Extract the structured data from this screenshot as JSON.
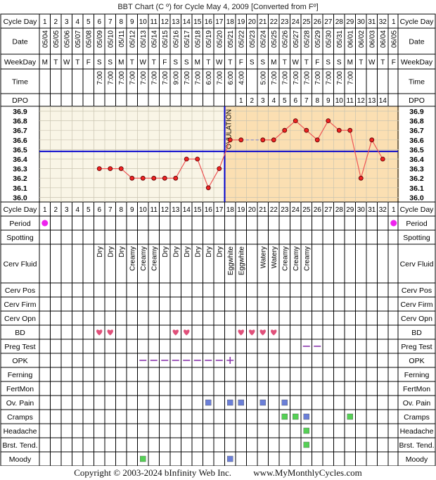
{
  "title": "BBT Chart (C º) for Cycle May 4, 2009  [Converted from Fº]",
  "footer": {
    "copyright": "Copyright © 2003-2024 bInfinity Web Inc.",
    "site": "www.MyMonthlyCycles.com"
  },
  "labels": {
    "cycle_day": "Cycle Day",
    "date": "Date",
    "weekday": "WeekDay",
    "time": "Time",
    "dpo": "DPO",
    "period": "Period",
    "spotting": "Spotting",
    "cerv_fluid": "Cerv Fluid",
    "cerv_pos": "Cerv Pos",
    "cerv_firm": "Cerv Firm",
    "cerv_opn": "Cerv Opn",
    "bd": "BD",
    "preg_test": "Preg Test",
    "opk": "OPK",
    "ferning": "Ferning",
    "fertmon": "FertMon",
    "ov_pain": "Ov. Pain",
    "cramps": "Cramps",
    "headache": "Headache",
    "brst_tend": "Brst. Tend.",
    "moody": "Moody"
  },
  "colors": {
    "grid": "#000000",
    "pre_bg": "#f9f5e6",
    "post_bg": "#fbdfb2",
    "coverline": "#0000cc",
    "ovulation": "#0000cc",
    "temp_line": "#ee5555",
    "temp_dot": "#ee2222",
    "period_dot": "#ee22ee",
    "heart": "#e0507a",
    "symptom": "#6b7fd8",
    "green": "#55d055",
    "label_bg": "#ffffff"
  },
  "chart_data": {
    "type": "line",
    "cycle_days": [
      "1",
      "2",
      "3",
      "4",
      "5",
      "6",
      "7",
      "8",
      "9",
      "10",
      "11",
      "12",
      "13",
      "14",
      "15",
      "16",
      "17",
      "18",
      "19",
      "20",
      "21",
      "22",
      "23",
      "24",
      "25",
      "26",
      "27",
      "28",
      "29",
      "30",
      "31",
      "32",
      "1"
    ],
    "dates": [
      "05/04",
      "05/05",
      "05/06",
      "05/07",
      "05/08",
      "05/09",
      "05/10",
      "05/11",
      "05/12",
      "05/13",
      "05/14",
      "05/15",
      "05/16",
      "05/17",
      "05/18",
      "05/19",
      "05/20",
      "05/21",
      "05/22",
      "05/23",
      "05/24",
      "05/25",
      "05/26",
      "05/27",
      "05/28",
      "05/29",
      "05/30",
      "05/31",
      "06/01",
      "06/02",
      "06/03",
      "06/04",
      "06/05"
    ],
    "weekdays": [
      "M",
      "T",
      "W",
      "T",
      "F",
      "S",
      "S",
      "M",
      "T",
      "W",
      "T",
      "F",
      "S",
      "S",
      "M",
      "T",
      "W",
      "T",
      "F",
      "S",
      "S",
      "M",
      "T",
      "W",
      "T",
      "F",
      "S",
      "S",
      "M",
      "T",
      "W",
      "T",
      "F"
    ],
    "times": [
      "",
      "",
      "",
      "",
      "",
      "7:00",
      "7:00",
      "7:00",
      "7:00",
      "7:00",
      "7:00",
      "7:00",
      "9:00",
      "7:00",
      "7:00",
      "6:00",
      "7:00",
      "6:00",
      "4:00",
      "",
      "5:00",
      "7:00",
      "7:00",
      "7:00",
      "7:00",
      "7:00",
      "7:00",
      "7:00",
      "7:00",
      "",
      "",
      "",
      ""
    ],
    "dpo": [
      "",
      "",
      "",
      "",
      "",
      "",
      "",
      "",
      "",
      "",
      "",
      "",
      "",
      "",
      "",
      "",
      "",
      "",
      "1",
      "2",
      "3",
      "4",
      "5",
      "6",
      "7",
      "8",
      "9",
      "10",
      "11",
      "12",
      "13",
      "14",
      ""
    ],
    "temperatures": [
      null,
      null,
      null,
      null,
      null,
      36.3,
      36.3,
      36.3,
      36.2,
      36.2,
      36.2,
      36.2,
      36.2,
      36.4,
      36.4,
      36.1,
      36.3,
      36.6,
      36.6,
      null,
      36.6,
      36.6,
      36.7,
      36.8,
      36.7,
      36.6,
      36.8,
      36.7,
      36.7,
      36.2,
      36.6,
      36.4,
      null
    ],
    "y_ticks": [
      "36.9",
      "36.8",
      "36.7",
      "36.6",
      "36.5",
      "36.4",
      "36.3",
      "36.2",
      "36.1",
      "36.0"
    ],
    "ylim": [
      36.0,
      36.9
    ],
    "coverline": 36.48,
    "ovulation_day_index": 17,
    "ovulation_label": "OVULATION",
    "grid": true,
    "cerv_fluid": [
      "",
      "",
      "",
      "",
      "",
      "Dry",
      "Dry",
      "Dry",
      "Creamy",
      "Creamy",
      "Creamy",
      "Dry",
      "Dry",
      "Dry",
      "Dry",
      "Dry",
      "Dry",
      "Eggwhite",
      "Eggwhite",
      "",
      "Watery",
      "Watery",
      "Creamy",
      "Creamy",
      "Creamy",
      "",
      "",
      "",
      "",
      "",
      "",
      "",
      ""
    ],
    "period_days": [
      0,
      32
    ],
    "bd_days": [
      5,
      6,
      12,
      13,
      18,
      19,
      20,
      21
    ],
    "preg_test_days": [
      24,
      25
    ],
    "opk_neg_days": [
      9,
      10,
      11,
      12,
      13,
      14,
      15,
      16
    ],
    "opk_pos_days": [
      17
    ],
    "ov_pain_days": [
      15,
      17,
      18,
      20,
      22
    ],
    "cramps_days": [
      22,
      23,
      24,
      28
    ],
    "cramps_blue_days": [
      24
    ],
    "headache_days": [
      24
    ],
    "brst_tend_days": [
      24
    ],
    "moody_green_days": [
      9
    ],
    "moody_blue_days": [
      17
    ]
  }
}
